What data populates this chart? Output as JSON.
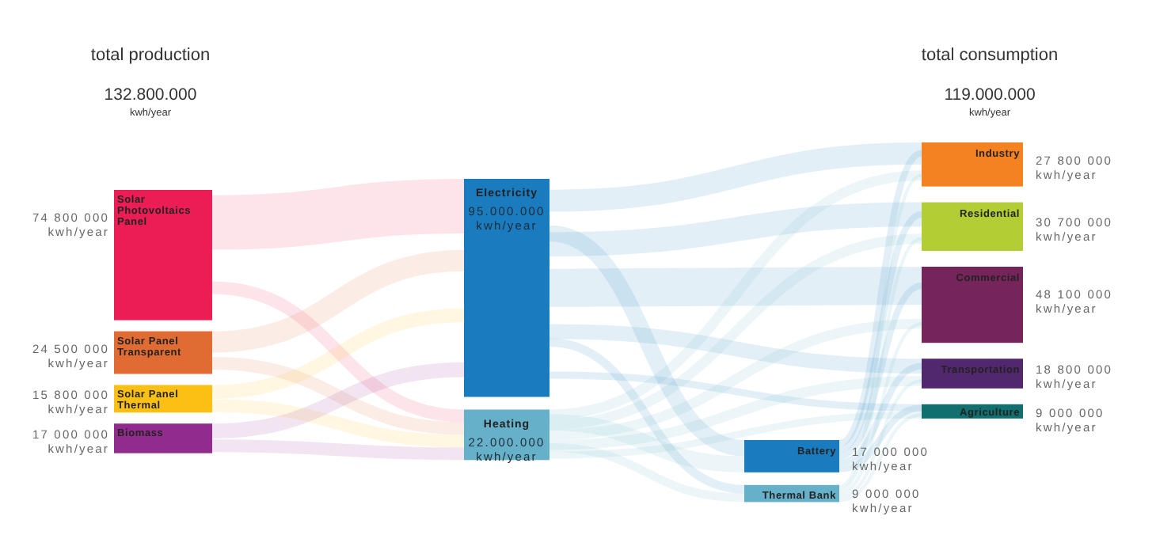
{
  "chart_data": [
    {
      "type": "other",
      "annotations": [
        "total production",
        "132.800.000",
        "kwh/year"
      ],
      "categories": [
        "Solar Photovoltaics Panel",
        "Solar Panel Transparent",
        "Solar Panel Thermal",
        "Biomass"
      ],
      "values": [
        74800000,
        24500000,
        15800000,
        17000000
      ],
      "value_labels": [
        "74 800 000\nkwh/year",
        "24 500 000\nkwh/year",
        "15 800 000\nkwh/year",
        "17 000 000\nkwh/year"
      ],
      "colors": [
        "#ec1c54",
        "#e06b33",
        "#fcc014",
        "#922b8e"
      ]
    },
    {
      "type": "other",
      "categories": [
        "Electricity",
        "Heating"
      ],
      "values": [
        95000000,
        22000000
      ],
      "value_labels": [
        "95.000.000\nkwh/year",
        "22.000.000\nkwh/year"
      ],
      "colors": [
        "#1a7bbf",
        "#66b1c9"
      ]
    },
    {
      "type": "other",
      "categories": [
        "Battery",
        "Thermal Bank"
      ],
      "values": [
        17000000,
        9000000
      ],
      "value_labels": [
        "17 000 000\nkwh/year",
        "9 000 000\nkwh/year"
      ],
      "colors": [
        "#1a7bbf",
        "#66b1c9"
      ]
    },
    {
      "type": "other",
      "annotations": [
        "total consumption",
        "119.000.000",
        "kwh/year"
      ],
      "categories": [
        "Industry",
        "Residential",
        "Commercial",
        "Transportation",
        "Agriculture"
      ],
      "values": [
        27800000,
        30700000,
        48100000,
        18800000,
        9000000
      ],
      "value_labels": [
        "27 800 000\nkwh/year",
        "30 700 000\nkwh/year",
        "48 100 000\nkwh/year",
        "18 800 000\nkwh/year",
        "9 000 000\nkwh/year"
      ],
      "colors": [
        "#f58220",
        "#b3cd35",
        "#75255a",
        "#51276e",
        "#126f6f"
      ]
    }
  ]
}
